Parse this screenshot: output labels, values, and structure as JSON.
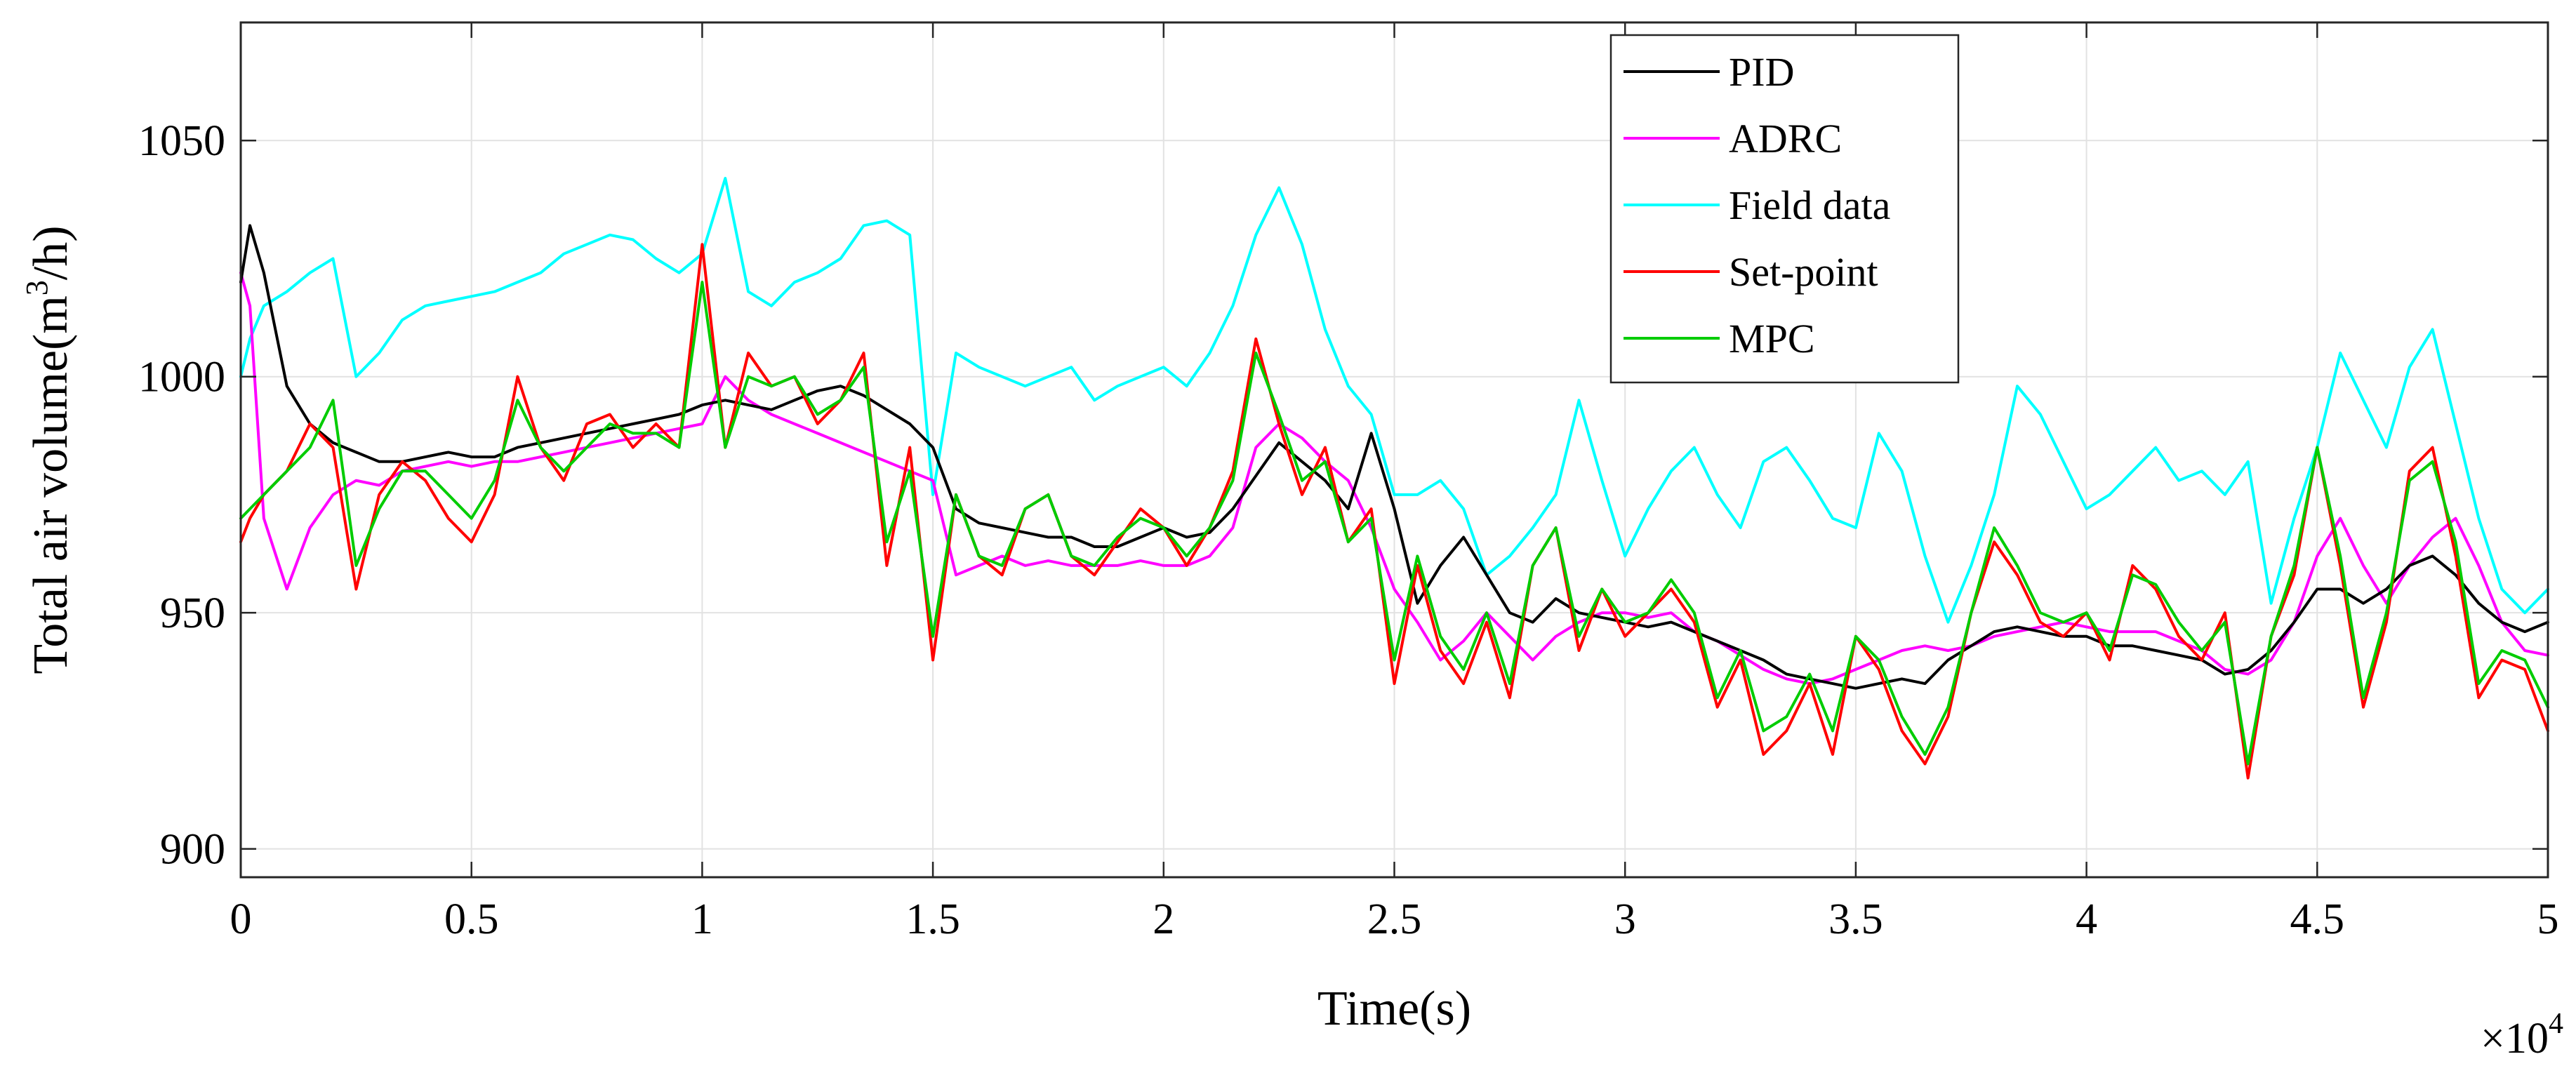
{
  "chart_data": {
    "type": "line",
    "title": "",
    "xlabel": "Time(s)",
    "ylabel_parts": [
      "Total air volume(m",
      "3",
      "/h)"
    ],
    "x_multiplier": {
      "base": "×10",
      "exponent": "4"
    },
    "xlim": [
      0,
      5
    ],
    "ylim": [
      894,
      1075
    ],
    "x_ticks": [
      0,
      0.5,
      1,
      1.5,
      2,
      2.5,
      3,
      3.5,
      4,
      4.5,
      5
    ],
    "x_tick_labels": [
      "0",
      "0.5",
      "1",
      "1.5",
      "2",
      "2.5",
      "3",
      "3.5",
      "4",
      "4.5",
      "5"
    ],
    "y_ticks": [
      900,
      950,
      1000,
      1050
    ],
    "y_tick_labels": [
      "900",
      "950",
      "1000",
      "1050"
    ],
    "grid": true,
    "legend_position": "top-right",
    "x": [
      0,
      0.02,
      0.05,
      0.1,
      0.15,
      0.2,
      0.25,
      0.3,
      0.35,
      0.4,
      0.45,
      0.5,
      0.55,
      0.6,
      0.65,
      0.7,
      0.75,
      0.8,
      0.85,
      0.9,
      0.95,
      1.0,
      1.05,
      1.1,
      1.15,
      1.2,
      1.25,
      1.3,
      1.35,
      1.4,
      1.45,
      1.5,
      1.55,
      1.6,
      1.65,
      1.7,
      1.75,
      1.8,
      1.85,
      1.9,
      1.95,
      2.0,
      2.05,
      2.1,
      2.15,
      2.2,
      2.25,
      2.3,
      2.35,
      2.4,
      2.45,
      2.5,
      2.55,
      2.6,
      2.65,
      2.7,
      2.75,
      2.8,
      2.85,
      2.9,
      2.95,
      3.0,
      3.05,
      3.1,
      3.15,
      3.2,
      3.25,
      3.3,
      3.35,
      3.4,
      3.45,
      3.5,
      3.55,
      3.6,
      3.65,
      3.7,
      3.75,
      3.8,
      3.85,
      3.9,
      3.95,
      4.0,
      4.05,
      4.1,
      4.15,
      4.2,
      4.25,
      4.3,
      4.35,
      4.4,
      4.45,
      4.5,
      4.55,
      4.6,
      4.65,
      4.7,
      4.75,
      4.8,
      4.85,
      4.9,
      4.95,
      5.0
    ],
    "series": [
      {
        "name": "PID",
        "color": "#000000",
        "values": [
          1020,
          1032,
          1022,
          998,
          990,
          986,
          984,
          982,
          982,
          983,
          984,
          983,
          983,
          985,
          986,
          987,
          988,
          989,
          990,
          991,
          992,
          994,
          995,
          994,
          993,
          995,
          997,
          998,
          996,
          993,
          990,
          985,
          972,
          969,
          968,
          967,
          966,
          966,
          964,
          964,
          966,
          968,
          966,
          967,
          972,
          979,
          986,
          982,
          978,
          972,
          988,
          972,
          952,
          960,
          966,
          958,
          950,
          948,
          953,
          950,
          949,
          948,
          947,
          948,
          946,
          944,
          942,
          940,
          937,
          936,
          935,
          934,
          935,
          936,
          935,
          940,
          943,
          946,
          947,
          946,
          945,
          945,
          943,
          943,
          942,
          941,
          940,
          937,
          938,
          942,
          948,
          955,
          955,
          952,
          955,
          960,
          962,
          958,
          952,
          948,
          946,
          948
        ]
      },
      {
        "name": "ADRC",
        "color": "#ff00ff",
        "values": [
          1022,
          1015,
          970,
          955,
          968,
          975,
          978,
          977,
          980,
          981,
          982,
          981,
          982,
          982,
          983,
          984,
          985,
          986,
          987,
          988,
          989,
          990,
          1000,
          995,
          992,
          990,
          988,
          986,
          984,
          982,
          980,
          978,
          958,
          960,
          962,
          960,
          961,
          960,
          960,
          960,
          961,
          960,
          960,
          962,
          968,
          985,
          990,
          987,
          982,
          978,
          968,
          955,
          948,
          940,
          944,
          950,
          945,
          940,
          945,
          948,
          950,
          950,
          949,
          950,
          946,
          944,
          941,
          938,
          936,
          935,
          936,
          938,
          940,
          942,
          943,
          942,
          943,
          945,
          946,
          947,
          948,
          947,
          946,
          946,
          946,
          944,
          942,
          938,
          937,
          940,
          948,
          962,
          970,
          960,
          952,
          960,
          966,
          970,
          960,
          948,
          942,
          941
        ]
      },
      {
        "name": "Field data",
        "color": "#00ffff",
        "values": [
          1000,
          1008,
          1015,
          1018,
          1022,
          1025,
          1000,
          1005,
          1012,
          1015,
          1016,
          1017,
          1018,
          1020,
          1022,
          1026,
          1028,
          1030,
          1029,
          1025,
          1022,
          1026,
          1042,
          1018,
          1015,
          1020,
          1022,
          1025,
          1032,
          1033,
          1030,
          975,
          1005,
          1002,
          1000,
          998,
          1000,
          1002,
          995,
          998,
          1000,
          1002,
          998,
          1005,
          1015,
          1030,
          1040,
          1028,
          1010,
          998,
          992,
          975,
          975,
          978,
          972,
          958,
          962,
          968,
          975,
          995,
          978,
          962,
          972,
          980,
          985,
          975,
          968,
          982,
          985,
          978,
          970,
          968,
          988,
          980,
          962,
          948,
          960,
          975,
          998,
          992,
          982,
          972,
          975,
          980,
          985,
          978,
          980,
          975,
          982,
          952,
          970,
          985,
          1005,
          995,
          985,
          1002,
          1010,
          990,
          970,
          955,
          950,
          955
        ]
      },
      {
        "name": "Set-point",
        "color": "#ff0000",
        "values": [
          965,
          970,
          975,
          980,
          990,
          985,
          955,
          975,
          982,
          978,
          970,
          965,
          975,
          1000,
          985,
          978,
          990,
          992,
          985,
          990,
          985,
          1028,
          985,
          1005,
          998,
          1000,
          990,
          995,
          1005,
          960,
          985,
          940,
          975,
          962,
          958,
          972,
          975,
          962,
          958,
          965,
          972,
          968,
          960,
          968,
          980,
          1008,
          990,
          975,
          985,
          965,
          972,
          935,
          960,
          942,
          935,
          948,
          932,
          960,
          968,
          942,
          955,
          945,
          950,
          955,
          948,
          930,
          940,
          920,
          925,
          935,
          920,
          945,
          938,
          925,
          918,
          928,
          950,
          965,
          958,
          948,
          945,
          950,
          940,
          960,
          955,
          945,
          940,
          950,
          915,
          945,
          958,
          985,
          960,
          930,
          948,
          980,
          985,
          962,
          932,
          940,
          938,
          925
        ]
      },
      {
        "name": "MPC",
        "color": "#00cc00",
        "values": [
          970,
          972,
          975,
          980,
          985,
          995,
          960,
          972,
          980,
          980,
          975,
          970,
          978,
          995,
          985,
          980,
          985,
          990,
          988,
          988,
          985,
          1020,
          985,
          1000,
          998,
          1000,
          992,
          995,
          1002,
          965,
          980,
          945,
          975,
          962,
          960,
          972,
          975,
          962,
          960,
          966,
          970,
          968,
          962,
          968,
          978,
          1005,
          992,
          978,
          982,
          965,
          970,
          940,
          962,
          945,
          938,
          950,
          935,
          960,
          968,
          945,
          955,
          948,
          950,
          957,
          950,
          932,
          942,
          925,
          928,
          937,
          925,
          945,
          940,
          928,
          920,
          930,
          950,
          968,
          960,
          950,
          948,
          950,
          942,
          958,
          956,
          948,
          942,
          948,
          918,
          945,
          960,
          985,
          962,
          932,
          950,
          978,
          982,
          965,
          935,
          942,
          940,
          930
        ]
      }
    ]
  }
}
